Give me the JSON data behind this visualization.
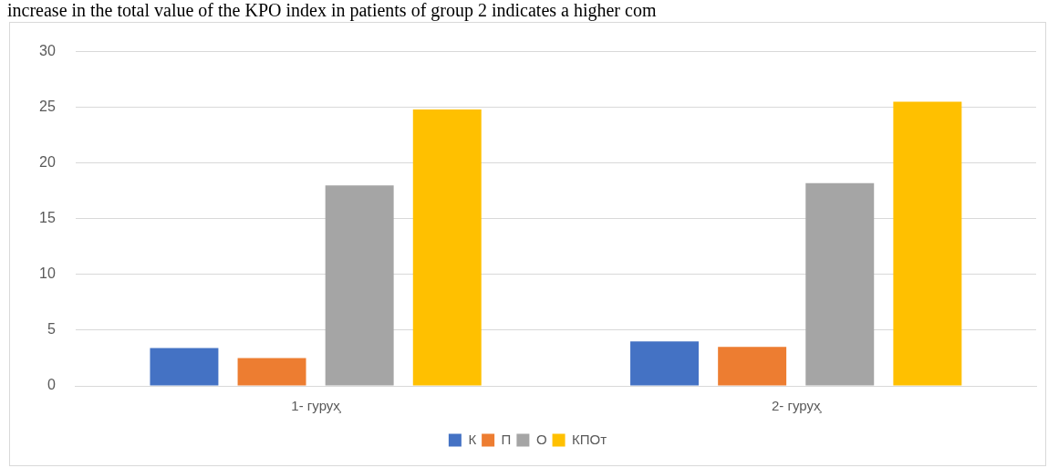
{
  "chart_data": {
    "type": "bar",
    "categories": [
      "1- гурух̧",
      "2- гурух̧"
    ],
    "series": [
      {
        "name": "К",
        "color": "#4472c4",
        "values": [
          3.4,
          4.0
        ]
      },
      {
        "name": "П",
        "color": "#ed7d31",
        "values": [
          2.5,
          3.5
        ]
      },
      {
        "name": "О",
        "color": "#a5a5a5",
        "values": [
          18.0,
          18.2
        ]
      },
      {
        "name": "КПОт",
        "color": "#ffc000",
        "values": [
          24.8,
          25.5
        ]
      }
    ],
    "ylim": [
      0,
      30
    ],
    "yticks": [
      0,
      5,
      10,
      15,
      20,
      25,
      30
    ],
    "grid": "y",
    "legend": "bottom",
    "annotations": [
      "increase in the total value of the KPO index in patients of group 2 indicates a higher com"
    ]
  }
}
